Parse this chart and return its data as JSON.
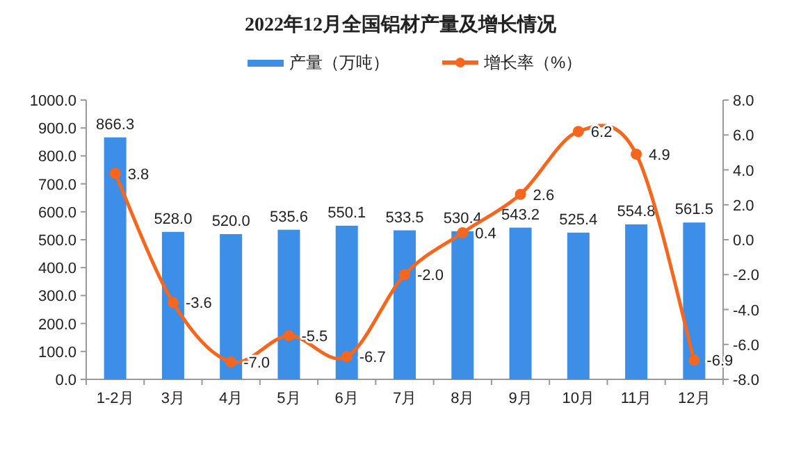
{
  "chart_data": {
    "type": "bar",
    "title": "2022年12月全国铝材产量及增长情况",
    "categories": [
      "1-2月",
      "3月",
      "4月",
      "5月",
      "6月",
      "7月",
      "8月",
      "9月",
      "10月",
      "11月",
      "12月"
    ],
    "series": [
      {
        "name": "产量（万吨）",
        "type": "bar",
        "color": "#3c8ee6",
        "values": [
          866.3,
          528.0,
          520.0,
          535.6,
          550.1,
          533.5,
          530.4,
          543.2,
          525.4,
          554.8,
          561.5
        ],
        "value_labels": [
          "866.3",
          "528.0",
          "520.0",
          "535.6",
          "550.1",
          "533.5",
          "530.4",
          "543.2",
          "525.4",
          "554.8",
          "561.5"
        ]
      },
      {
        "name": "增长率（%）",
        "type": "line",
        "axis": "y2",
        "color": "#f5671e",
        "marker": "circle",
        "values": [
          3.8,
          -3.6,
          -7.0,
          -5.5,
          -6.7,
          -2.0,
          0.4,
          2.6,
          6.2,
          4.9,
          -6.9
        ],
        "value_labels": [
          "3.8",
          "-3.6",
          "-7.0",
          "-5.5",
          "-6.7",
          "-2.0",
          "0.4",
          "2.6",
          "6.2",
          "4.9",
          "-6.9"
        ]
      }
    ],
    "ylim": [
      0,
      1000
    ],
    "yticks": [
      {
        "value": 0,
        "label": "0.0"
      },
      {
        "value": 100,
        "label": "100.0"
      },
      {
        "value": 200,
        "label": "200.0"
      },
      {
        "value": 300,
        "label": "300.0"
      },
      {
        "value": 400,
        "label": "400.0"
      },
      {
        "value": 500,
        "label": "500.0"
      },
      {
        "value": 600,
        "label": "600.0"
      },
      {
        "value": 700,
        "label": "700.0"
      },
      {
        "value": 800,
        "label": "800.0"
      },
      {
        "value": 900,
        "label": "900.0"
      },
      {
        "value": 1000,
        "label": "1000.0"
      }
    ],
    "y2lim": [
      -8,
      8
    ],
    "y2ticks": [
      {
        "value": -8,
        "label": "-8.0"
      },
      {
        "value": -6,
        "label": "-6.0"
      },
      {
        "value": -4,
        "label": "-4.0"
      },
      {
        "value": -2,
        "label": "-2.0"
      },
      {
        "value": 0,
        "label": "0.0"
      },
      {
        "value": 2,
        "label": "2.0"
      },
      {
        "value": 4,
        "label": "4.0"
      },
      {
        "value": 6,
        "label": "6.0"
      },
      {
        "value": 8,
        "label": "8.0"
      }
    ],
    "legend": "top"
  }
}
